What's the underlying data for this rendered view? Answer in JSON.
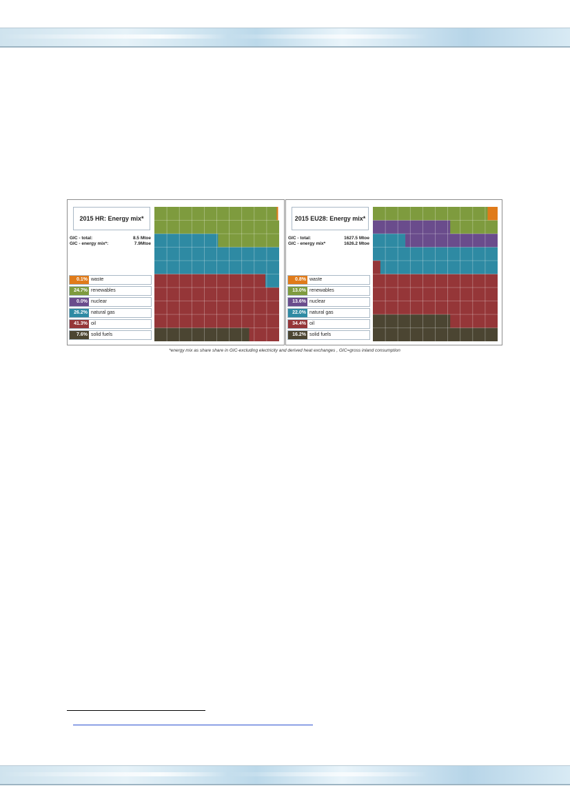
{
  "colors": {
    "waste": "#e07b1a",
    "renewables": "#7e9b3e",
    "nuclear": "#6a4c8c",
    "natural_gas": "#2e8aa3",
    "oil": "#953638",
    "solid_fuels": "#4b4532"
  },
  "footnote": "*energy mix as share share in GIC-excluding electricity and derived heat exchanges , GIC=gross inland consumption",
  "chart_data": [
    {
      "type": "waffle",
      "title": "2015 HR: Energy mix*",
      "gic": [
        {
          "label": "GIC - total:",
          "value": "8.5 Mtoe"
        },
        {
          "label": "GIC - energy mix*:",
          "value": "7.9Mtoe"
        }
      ],
      "grid": {
        "rows": 10,
        "cols": 10
      },
      "legend": [
        {
          "key": "waste",
          "pct": "0.1%",
          "name": "waste"
        },
        {
          "key": "renewables",
          "pct": "24.7%",
          "name": "renewables"
        },
        {
          "key": "nuclear",
          "pct": "0.0%",
          "name": "nuclear"
        },
        {
          "key": "natural_gas",
          "pct": "26.2%",
          "name": "natural gas"
        },
        {
          "key": "oil",
          "pct": "41.3%",
          "name": "oil"
        },
        {
          "key": "solid_fuels",
          "pct": "7.6%",
          "name": "solid fuels"
        }
      ],
      "values": {
        "waste": 0.1,
        "renewables": 24.7,
        "nuclear": 0.0,
        "natural_gas": 26.2,
        "oil": 41.3,
        "solid_fuels": 7.6
      }
    },
    {
      "type": "waffle",
      "title": "2015 EU28: Energy mix*",
      "gic": [
        {
          "label": "GIC - total:",
          "value": "1627.5 Mtoe"
        },
        {
          "label": "GIC - energy mix*",
          "value": "1626.2 Mtoe"
        }
      ],
      "grid": {
        "rows": 10,
        "cols": 10
      },
      "legend": [
        {
          "key": "waste",
          "pct": "0.8%",
          "name": "waste"
        },
        {
          "key": "renewables",
          "pct": "13.0%",
          "name": "renewables"
        },
        {
          "key": "nuclear",
          "pct": "13.6%",
          "name": "nuclear"
        },
        {
          "key": "natural_gas",
          "pct": "22.0%",
          "name": "natural gas"
        },
        {
          "key": "oil",
          "pct": "34.4%",
          "name": "oil"
        },
        {
          "key": "solid_fuels",
          "pct": "16.2%",
          "name": "solid fuels"
        }
      ],
      "values": {
        "waste": 0.8,
        "renewables": 13.0,
        "nuclear": 13.6,
        "natural_gas": 22.0,
        "oil": 34.4,
        "solid_fuels": 16.2
      }
    }
  ]
}
